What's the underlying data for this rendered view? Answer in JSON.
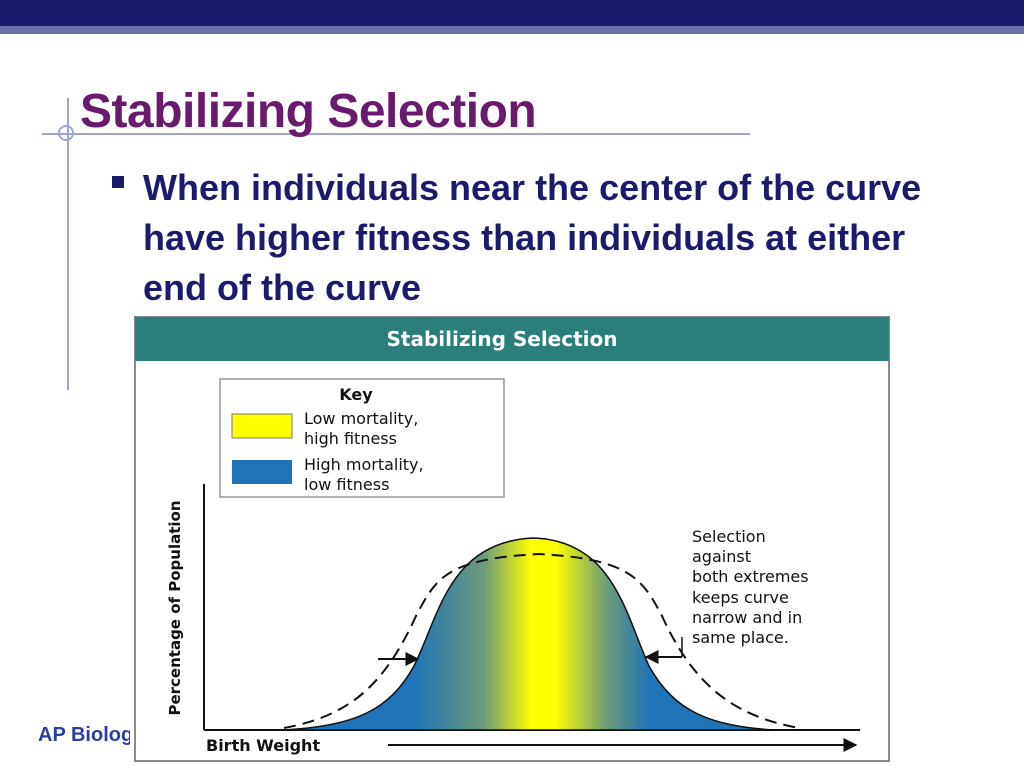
{
  "slide": {
    "title": "Stabilizing Selection",
    "bullet": "When individuals near the center of the curve have higher fitness than individuals at either end of the curve",
    "footer": "AP Biology"
  },
  "figure": {
    "header": "Stabilizing Selection",
    "key_title": "Key",
    "key_items": [
      {
        "line1": "Low mortality,",
        "line2": "high fitness",
        "color": "#ffff00"
      },
      {
        "line1": "High mortality,",
        "line2": "low fitness",
        "color": "#1f74b8"
      }
    ],
    "annotation": [
      "Selection",
      "against",
      "both extremes",
      "keeps curve",
      "narrow and in",
      "same place."
    ],
    "y_axis_label": "Percentage of Population",
    "x_axis_label": "Birth Weight"
  },
  "colors": {
    "top_bar": "#1b1b6e",
    "title": "#6a1a6e",
    "bullet_text": "#1b1b6e",
    "footer_text": "#2a3ea0",
    "figure_header": "#2a7f7a",
    "high_fitness": "#ffff00",
    "low_fitness": "#1f74b8"
  }
}
